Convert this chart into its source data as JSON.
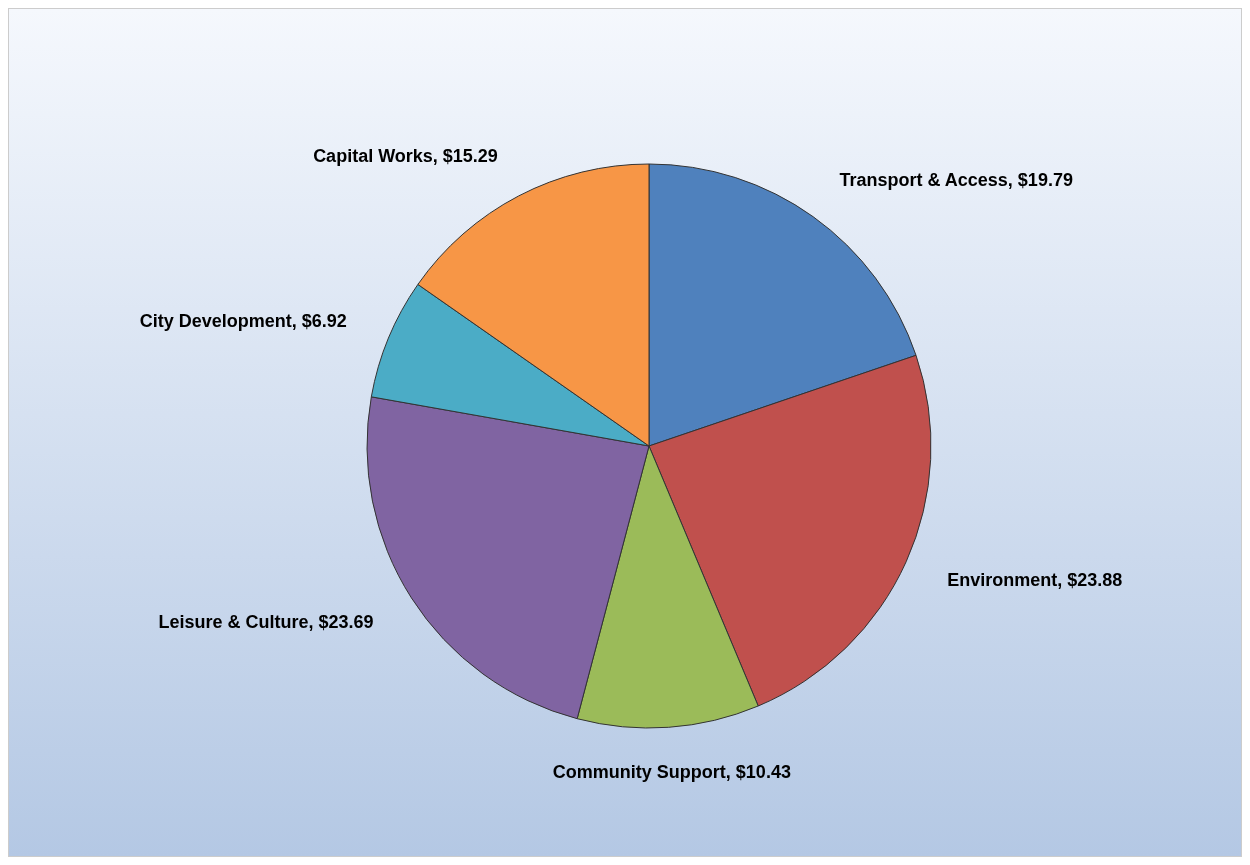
{
  "chart_data": {
    "type": "pie",
    "categories": [
      "Transport & Access",
      "Environment",
      "Community Support",
      "Leisure & Culture",
      "City Development",
      "Capital Works"
    ],
    "values": [
      19.79,
      23.88,
      10.43,
      23.69,
      6.92,
      15.29
    ],
    "colors": [
      "#4f81bd",
      "#c0504d",
      "#9bbb59",
      "#8064a2",
      "#4bacc6",
      "#f79646"
    ],
    "value_labels": [
      "$19.79",
      "$23.88",
      "$10.43",
      "$23.69",
      "$6.92",
      "$15.29"
    ]
  }
}
